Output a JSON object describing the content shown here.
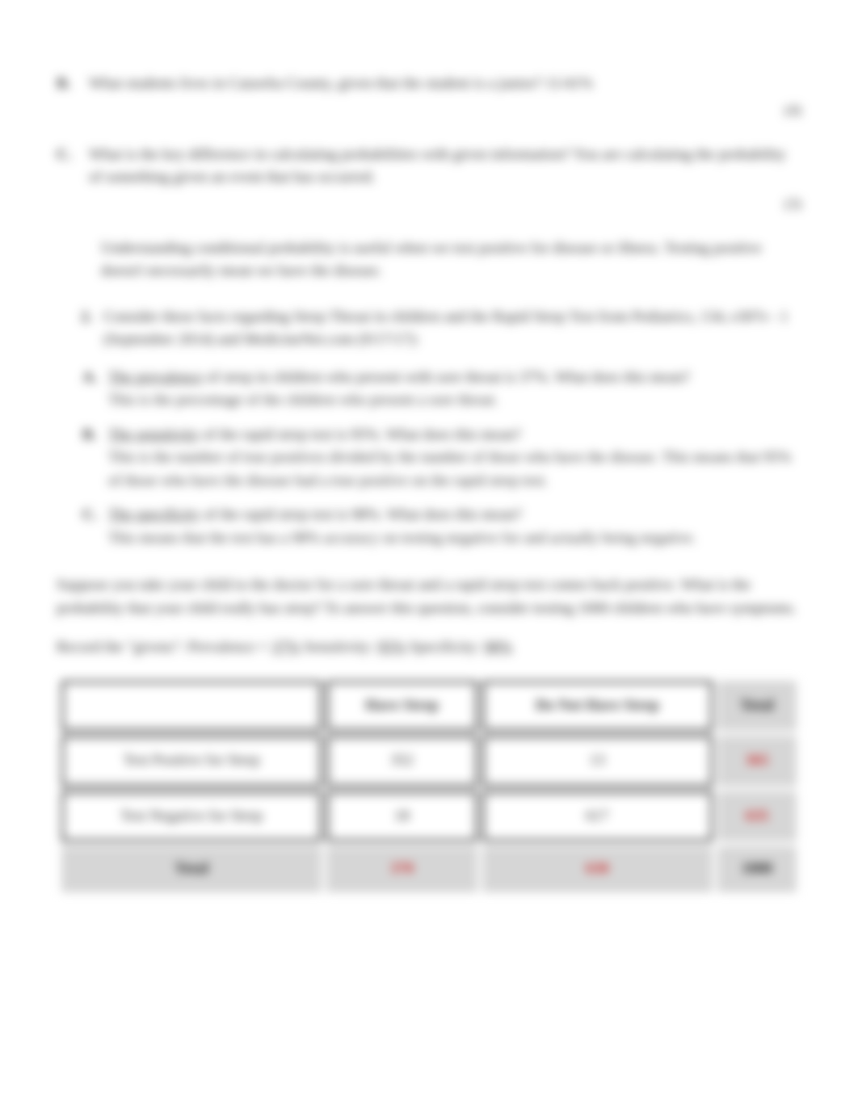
{
  "questions": {
    "b": {
      "marker": "B.",
      "text": "What students lives in Catawba County, given that the student is a junior?",
      "answer": "11/41%",
      "pts": "(4)"
    },
    "c": {
      "marker": "C.",
      "text": "What is the key difference in calculating probabilities with given information? You are calculating the probability of something given an event that has occurred.",
      "pts": "(3)"
    }
  },
  "intro_para": "Understanding conditional probability is useful when we test positive for disease or illness.  Testing positive doesn't necessarily mean we have the disease.",
  "numbered": {
    "marker": "2.",
    "text": "Consider these facts regarding Strep Throat in children and the Rapid Strep Test from Pediatrics, 134, e307e - 1 (September 2014) and MedicineNet.com (9/17/17):"
  },
  "subs": {
    "a": {
      "marker": "A.",
      "label": "The prevalence",
      "rest": " of strep in children who present with sore throat is 37%.  What does this mean?",
      "explain": "This is the percentage of the children who present a sore throat."
    },
    "b": {
      "marker": "B.",
      "label": "The sensitivity",
      "rest": " of the rapid strep test is 95%.  What does this mean?",
      "explain": "This is the number of true positives divided by the number of those who have the disease. This means that 95% of those who have the disease had a true positive on the rapid strep test."
    },
    "c": {
      "marker": "C.",
      "label": "The specificity",
      "rest": " of the rapid strep test is 98%.  What does this mean?",
      "explain": "This means that the test has a 98% accuracy on testing negative for and actually being negative."
    }
  },
  "prompt": "Suppose you take your child to the doctor for a sore throat and a rapid strep test comes back positive. What is the probability that your child really has strep?     To answer this question, consider testing 1000 children who have symptoms.",
  "givens": {
    "lead": "Record the \"givens\":  Prevalence = ",
    "prev": "37%",
    "mid1": "   Sensitivity: ",
    "sens": "95%",
    "mid2": "    Specificity: ",
    "spec": "98%"
  },
  "table": {
    "columns": [
      "Have Strep",
      "Do Not Have Strep",
      "Total"
    ],
    "rows": [
      {
        "label": "Test Positive for Strep",
        "c1": "352",
        "c2": "13",
        "total": "365"
      },
      {
        "label": "Test Negative for Strep",
        "c1": "18",
        "c2": "617",
        "total": "635"
      }
    ],
    "footer": {
      "label": "Total",
      "c1": "370",
      "c2": "630",
      "total": "1000"
    },
    "colors": {
      "border": "#2a2a2a",
      "gray_bg": "#d6d6d6",
      "red": "#c92a2a",
      "white": "#ffffff"
    }
  }
}
